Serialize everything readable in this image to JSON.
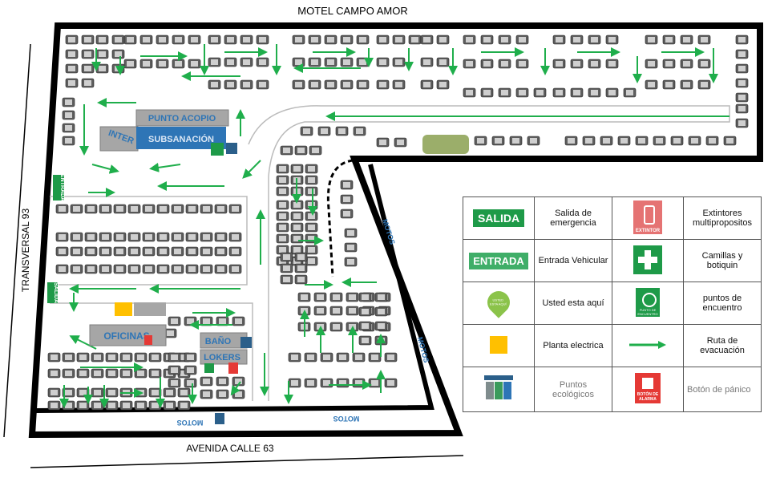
{
  "title": "MOTEL CAMPO AMOR",
  "streets": {
    "left": "TRANSVERSAL 93",
    "bottom": "AVENIDA CALLE 63"
  },
  "areas": {
    "acopio": "PUNTO ACOPIO",
    "inter": "INTER",
    "subsanacion": "SUBSANACIÓN",
    "entrada": "ENTRADA",
    "salida": "SALIDA",
    "oficinas": "OFICINAS",
    "bano": "BAÑO",
    "lokers": "LOKERS",
    "motos": [
      "MOTOS",
      "MOTOS",
      "MOTOS",
      "MOTOS"
    ]
  },
  "legend": {
    "salida": {
      "icon": "SALIDA",
      "label": "Salida de emergencia"
    },
    "extintor": {
      "icon": "EXTINTOR",
      "label": "Extintores multipropositos"
    },
    "entrada": {
      "icon": "ENTRADA",
      "label": "Entrada Vehicular"
    },
    "camillas": {
      "label": "Camillas y botiquin"
    },
    "usted": {
      "icon": "USTED ESTA AQUÍ",
      "label": "Usted esta aquí"
    },
    "encuentro": {
      "icon": "PUNTO DE ENCUENTRO",
      "label": "puntos de encuentro"
    },
    "planta": {
      "label": "Planta electrica"
    },
    "ruta": {
      "label": "Ruta de evacuación"
    },
    "eco": {
      "label": "Puntos ecológicos"
    },
    "boton": {
      "icon": "BOTÓN DE ALARMA",
      "label": "Botón de pánico"
    }
  }
}
